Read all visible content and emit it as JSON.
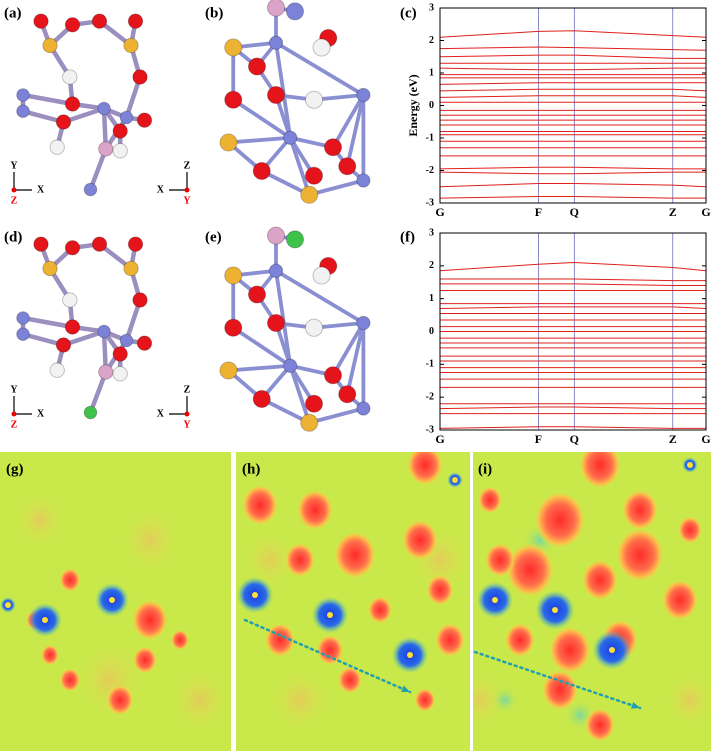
{
  "panels": [
    {
      "label": "(a)",
      "axes": [
        "Y",
        "X",
        "Z"
      ]
    },
    {
      "label": "(b)",
      "axes": [
        "Z",
        "X",
        "Y"
      ]
    },
    {
      "label": "(c)"
    },
    {
      "label": "(d)",
      "axes": [
        "Y",
        "X",
        "Z"
      ]
    },
    {
      "label": "(e)",
      "axes": [
        "Z",
        "X",
        "Y"
      ]
    },
    {
      "label": "(f)"
    },
    {
      "label": "(g)"
    },
    {
      "label": "(h)"
    },
    {
      "label": "(i)"
    }
  ],
  "chart_data": [
    {
      "type": "line",
      "ylabel": "Energy (eV)",
      "categories": [
        "G",
        "F",
        "Q",
        "Z",
        "G"
      ],
      "color": "#e0201b",
      "ylim": [
        -3,
        3
      ],
      "yticks": [
        -3,
        -2,
        -1,
        0,
        1,
        2,
        3
      ],
      "series": [
        {
          "values": [
            2.1,
            2.28,
            2.3,
            2.15,
            2.1
          ]
        },
        {
          "values": [
            1.75,
            1.8,
            1.78,
            1.72,
            1.7
          ]
        },
        {
          "values": [
            1.5,
            1.55,
            1.55,
            1.45,
            1.45
          ]
        },
        {
          "values": [
            1.3,
            1.3,
            1.3,
            1.3,
            1.3
          ]
        },
        {
          "values": [
            1.15,
            1.1,
            1.1,
            1.15,
            1.15
          ]
        },
        {
          "values": [
            0.95,
            0.95,
            0.95,
            0.95,
            0.95
          ]
        },
        {
          "values": [
            0.85,
            0.85,
            0.85,
            0.85,
            0.85
          ]
        },
        {
          "values": [
            0.65,
            0.7,
            0.7,
            0.7,
            0.7
          ]
        },
        {
          "values": [
            0.45,
            0.5,
            0.5,
            0.5,
            0.45
          ]
        },
        {
          "values": [
            0.25,
            0.3,
            0.3,
            0.3,
            0.25
          ]
        },
        {
          "values": [
            0.1,
            0.1,
            0.1,
            0.1,
            0.1
          ]
        },
        {
          "values": [
            -0.15,
            -0.15,
            -0.15,
            -0.15,
            -0.15
          ]
        },
        {
          "values": [
            -0.3,
            -0.3,
            -0.3,
            -0.3,
            -0.3
          ]
        },
        {
          "values": [
            -0.45,
            -0.45,
            -0.45,
            -0.45,
            -0.45
          ]
        },
        {
          "values": [
            -0.6,
            -0.6,
            -0.6,
            -0.6,
            -0.6
          ]
        },
        {
          "values": [
            -0.8,
            -0.8,
            -0.8,
            -0.8,
            -0.8
          ]
        },
        {
          "values": [
            -0.9,
            -0.9,
            -0.9,
            -0.9,
            -0.9
          ]
        },
        {
          "values": [
            -1.1,
            -1.1,
            -1.1,
            -1.1,
            -1.1
          ]
        },
        {
          "values": [
            -1.3,
            -1.3,
            -1.3,
            -1.3,
            -1.3
          ]
        },
        {
          "values": [
            -1.55,
            -1.55,
            -1.55,
            -1.55,
            -1.55
          ]
        },
        {
          "values": [
            -1.95,
            -1.9,
            -1.9,
            -1.95,
            -1.95
          ]
        },
        {
          "values": [
            -2.05,
            -2.1,
            -2.1,
            -2.05,
            -2.05
          ]
        },
        {
          "values": [
            -2.5,
            -2.4,
            -2.4,
            -2.45,
            -2.5
          ]
        },
        {
          "values": [
            -2.85,
            -2.8,
            -2.8,
            -2.85,
            -2.85
          ]
        }
      ]
    },
    {
      "type": "line",
      "categories": [
        "G",
        "F",
        "Q",
        "Z",
        "G"
      ],
      "color": "#e0201b",
      "ylim": [
        -3,
        3
      ],
      "yticks": [
        -3,
        -2,
        -1,
        0,
        1,
        2,
        3
      ],
      "series": [
        {
          "values": [
            1.85,
            2.05,
            2.1,
            1.95,
            1.85
          ]
        },
        {
          "values": [
            1.6,
            1.6,
            1.6,
            1.55,
            1.55
          ]
        },
        {
          "values": [
            1.45,
            1.45,
            1.45,
            1.4,
            1.4
          ]
        },
        {
          "values": [
            1.25,
            1.25,
            1.25,
            1.25,
            1.25
          ]
        },
        {
          "values": [
            0.85,
            0.85,
            0.85,
            0.85,
            0.85
          ]
        },
        {
          "values": [
            0.7,
            0.75,
            0.75,
            0.75,
            0.7
          ]
        },
        {
          "values": [
            0.55,
            0.55,
            0.55,
            0.55,
            0.55
          ]
        },
        {
          "values": [
            0.35,
            0.35,
            0.35,
            0.35,
            0.35
          ]
        },
        {
          "values": [
            0.15,
            0.15,
            0.15,
            0.15,
            0.15
          ]
        },
        {
          "values": [
            0,
            0,
            0,
            0,
            0
          ]
        },
        {
          "values": [
            -0.2,
            -0.2,
            -0.2,
            -0.2,
            -0.2
          ]
        },
        {
          "values": [
            -0.35,
            -0.35,
            -0.35,
            -0.35,
            -0.35
          ]
        },
        {
          "values": [
            -0.5,
            -0.5,
            -0.5,
            -0.5,
            -0.5
          ]
        },
        {
          "values": [
            -0.75,
            -0.75,
            -0.75,
            -0.75,
            -0.75
          ]
        },
        {
          "values": [
            -0.9,
            -0.9,
            -0.9,
            -0.9,
            -0.9
          ]
        },
        {
          "values": [
            -1.1,
            -1.1,
            -1.1,
            -1.1,
            -1.1
          ]
        },
        {
          "values": [
            -1.25,
            -1.25,
            -1.25,
            -1.25,
            -1.25
          ]
        },
        {
          "values": [
            -1.45,
            -1.45,
            -1.45,
            -1.45,
            -1.45
          ]
        },
        {
          "values": [
            -1.7,
            -1.7,
            -1.7,
            -1.7,
            -1.7
          ]
        },
        {
          "values": [
            -2.2,
            -2.2,
            -2.2,
            -2.2,
            -2.2
          ]
        },
        {
          "values": [
            -2.35,
            -2.3,
            -2.3,
            -2.35,
            -2.35
          ]
        },
        {
          "values": [
            -2.5,
            -2.5,
            -2.5,
            -2.5,
            -2.5
          ]
        },
        {
          "values": [
            -2.95,
            -2.9,
            -2.9,
            -2.95,
            -2.95
          ]
        }
      ]
    }
  ]
}
